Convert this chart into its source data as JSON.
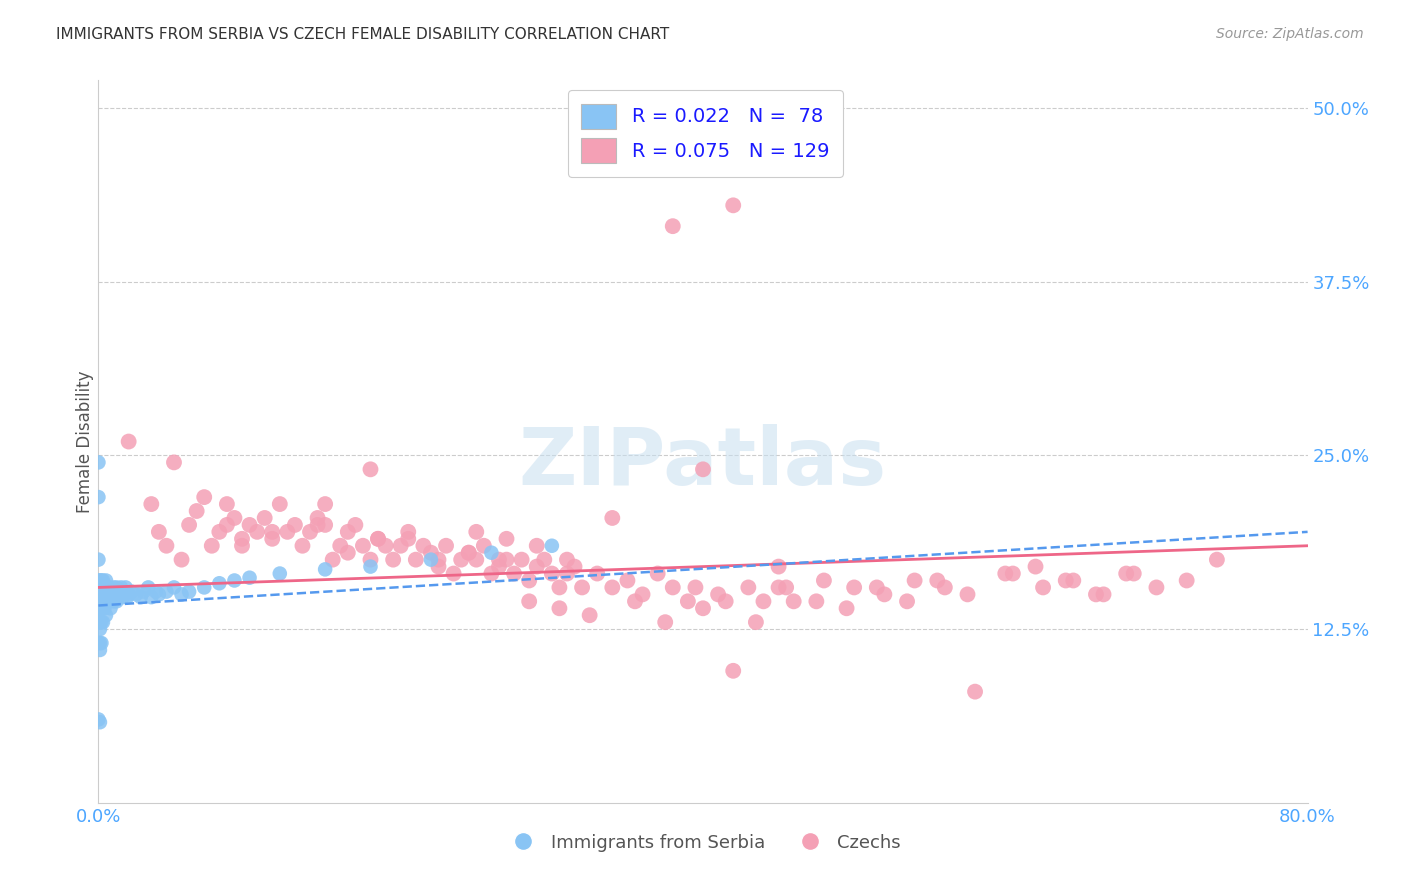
{
  "title": "IMMIGRANTS FROM SERBIA VS CZECH FEMALE DISABILITY CORRELATION CHART",
  "source": "Source: ZipAtlas.com",
  "ylabel": "Female Disability",
  "xlim": [
    0.0,
    0.8
  ],
  "ylim": [
    0.0,
    0.52
  ],
  "y_ticks": [
    0.125,
    0.25,
    0.375,
    0.5
  ],
  "y_tick_labels": [
    "12.5%",
    "25.0%",
    "37.5%",
    "50.0%"
  ],
  "legend_R_serbia": "0.022",
  "legend_N_serbia": "78",
  "legend_R_czechs": "0.075",
  "legend_N_czechs": "129",
  "serbia_color": "#89c4f4",
  "czechs_color": "#f4a0b5",
  "serbia_line_color": "#5599ee",
  "czechs_line_color": "#ee6688",
  "serbia_x": [
    0.0,
    0.0,
    0.0,
    0.0,
    0.0,
    0.0,
    0.0,
    0.0,
    0.0,
    0.0,
    0.001,
    0.001,
    0.001,
    0.001,
    0.001,
    0.001,
    0.001,
    0.001,
    0.001,
    0.001,
    0.002,
    0.002,
    0.002,
    0.002,
    0.002,
    0.002,
    0.003,
    0.003,
    0.003,
    0.003,
    0.004,
    0.004,
    0.004,
    0.005,
    0.005,
    0.005,
    0.006,
    0.006,
    0.007,
    0.007,
    0.008,
    0.008,
    0.009,
    0.01,
    0.01,
    0.011,
    0.012,
    0.012,
    0.013,
    0.014,
    0.015,
    0.016,
    0.017,
    0.018,
    0.019,
    0.02,
    0.022,
    0.025,
    0.028,
    0.03,
    0.033,
    0.035,
    0.038,
    0.04,
    0.045,
    0.05,
    0.055,
    0.06,
    0.07,
    0.08,
    0.09,
    0.1,
    0.12,
    0.15,
    0.18,
    0.22,
    0.26,
    0.3
  ],
  "serbia_y": [
    0.245,
    0.22,
    0.155,
    0.145,
    0.16,
    0.175,
    0.14,
    0.13,
    0.115,
    0.06,
    0.155,
    0.15,
    0.145,
    0.14,
    0.16,
    0.13,
    0.125,
    0.115,
    0.11,
    0.058,
    0.16,
    0.15,
    0.145,
    0.14,
    0.13,
    0.115,
    0.16,
    0.155,
    0.145,
    0.13,
    0.155,
    0.15,
    0.14,
    0.16,
    0.15,
    0.135,
    0.155,
    0.145,
    0.155,
    0.145,
    0.15,
    0.14,
    0.15,
    0.155,
    0.145,
    0.15,
    0.155,
    0.145,
    0.148,
    0.152,
    0.155,
    0.148,
    0.152,
    0.155,
    0.148,
    0.15,
    0.152,
    0.15,
    0.148,
    0.152,
    0.155,
    0.148,
    0.152,
    0.15,
    0.152,
    0.155,
    0.15,
    0.152,
    0.155,
    0.158,
    0.16,
    0.162,
    0.165,
    0.168,
    0.17,
    0.175,
    0.18,
    0.185
  ],
  "czechs_x": [
    0.35,
    0.02,
    0.05,
    0.06,
    0.07,
    0.075,
    0.08,
    0.085,
    0.09,
    0.095,
    0.1,
    0.105,
    0.11,
    0.115,
    0.12,
    0.125,
    0.13,
    0.135,
    0.14,
    0.145,
    0.15,
    0.155,
    0.16,
    0.165,
    0.17,
    0.175,
    0.18,
    0.185,
    0.19,
    0.195,
    0.2,
    0.205,
    0.21,
    0.215,
    0.22,
    0.225,
    0.23,
    0.235,
    0.24,
    0.245,
    0.25,
    0.255,
    0.26,
    0.265,
    0.27,
    0.275,
    0.28,
    0.285,
    0.29,
    0.295,
    0.3,
    0.305,
    0.31,
    0.315,
    0.32,
    0.33,
    0.34,
    0.35,
    0.36,
    0.37,
    0.38,
    0.39,
    0.4,
    0.41,
    0.42,
    0.43,
    0.44,
    0.45,
    0.46,
    0.48,
    0.5,
    0.52,
    0.54,
    0.56,
    0.58,
    0.6,
    0.62,
    0.64,
    0.66,
    0.68,
    0.7,
    0.72,
    0.74,
    0.035,
    0.04,
    0.045,
    0.055,
    0.065,
    0.085,
    0.095,
    0.115,
    0.145,
    0.165,
    0.185,
    0.205,
    0.225,
    0.245,
    0.265,
    0.285,
    0.305,
    0.325,
    0.355,
    0.375,
    0.395,
    0.415,
    0.435,
    0.455,
    0.475,
    0.495,
    0.515,
    0.535,
    0.555,
    0.575,
    0.605,
    0.625,
    0.645,
    0.665,
    0.685,
    0.42,
    0.38,
    0.31,
    0.15,
    0.18,
    0.27,
    0.34,
    0.25,
    0.29,
    0.4,
    0.45
  ],
  "czechs_y": [
    0.48,
    0.26,
    0.245,
    0.2,
    0.22,
    0.185,
    0.195,
    0.215,
    0.205,
    0.185,
    0.2,
    0.195,
    0.205,
    0.19,
    0.215,
    0.195,
    0.2,
    0.185,
    0.195,
    0.2,
    0.215,
    0.175,
    0.185,
    0.195,
    0.2,
    0.185,
    0.175,
    0.19,
    0.185,
    0.175,
    0.185,
    0.19,
    0.175,
    0.185,
    0.18,
    0.175,
    0.185,
    0.165,
    0.175,
    0.18,
    0.175,
    0.185,
    0.165,
    0.17,
    0.175,
    0.165,
    0.175,
    0.16,
    0.17,
    0.175,
    0.165,
    0.155,
    0.165,
    0.17,
    0.155,
    0.165,
    0.155,
    0.16,
    0.15,
    0.165,
    0.155,
    0.145,
    0.14,
    0.15,
    0.095,
    0.155,
    0.145,
    0.155,
    0.145,
    0.16,
    0.155,
    0.15,
    0.16,
    0.155,
    0.08,
    0.165,
    0.17,
    0.16,
    0.15,
    0.165,
    0.155,
    0.16,
    0.175,
    0.215,
    0.195,
    0.185,
    0.175,
    0.21,
    0.2,
    0.19,
    0.195,
    0.205,
    0.18,
    0.19,
    0.195,
    0.17,
    0.18,
    0.175,
    0.145,
    0.14,
    0.135,
    0.145,
    0.13,
    0.155,
    0.145,
    0.13,
    0.155,
    0.145,
    0.14,
    0.155,
    0.145,
    0.16,
    0.15,
    0.165,
    0.155,
    0.16,
    0.15,
    0.165,
    0.43,
    0.415,
    0.175,
    0.2,
    0.24,
    0.19,
    0.205,
    0.195,
    0.185,
    0.24,
    0.17
  ],
  "serbia_line_x0": 0.0,
  "serbia_line_x1": 0.8,
  "serbia_line_y0": 0.142,
  "serbia_line_y1": 0.195,
  "czechs_line_x0": 0.0,
  "czechs_line_x1": 0.8,
  "czechs_line_y0": 0.155,
  "czechs_line_y1": 0.185
}
